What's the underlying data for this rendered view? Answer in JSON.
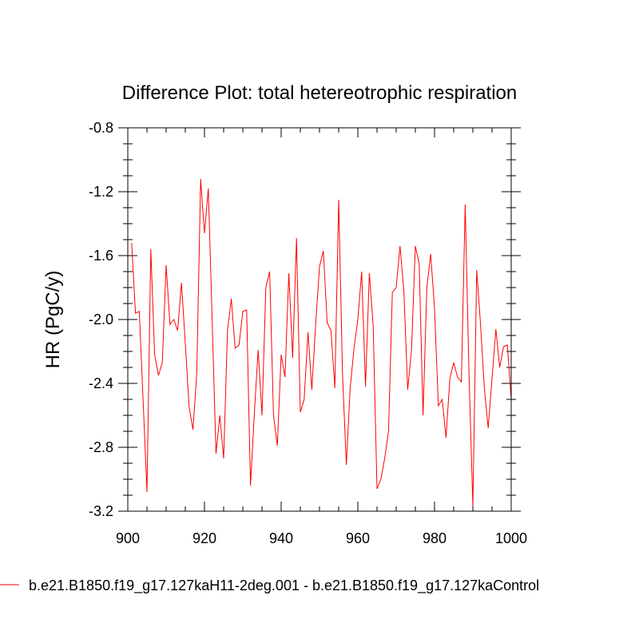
{
  "chart_data": {
    "type": "line",
    "title": "Difference Plot: total hetereotrophic respiration",
    "xlabel": "",
    "ylabel": "HR  (PgC/y)",
    "xlim": [
      900,
      1000
    ],
    "ylim": [
      -3.2,
      -0.8
    ],
    "xticks": [
      900,
      920,
      940,
      960,
      980,
      1000
    ],
    "xtick_labels": [
      "900",
      "920",
      "940",
      "960",
      "980",
      "1000"
    ],
    "yticks": [
      -3.2,
      -2.8,
      -2.4,
      -2.0,
      -1.6,
      -1.2,
      -0.8
    ],
    "ytick_labels": [
      "-3.2",
      "-2.8",
      "-2.4",
      "-2.0",
      "-1.6",
      "-1.2",
      "-0.8"
    ],
    "grid": false,
    "legend_position": "bottom",
    "series": [
      {
        "name": "b.e21.B1850.f19_g17.127kaH11-2deg.001 - b.e21.B1850.f19_g17.127kaControl",
        "color": "#ff0000",
        "x": [
          901,
          902,
          903,
          904,
          905,
          906,
          907,
          908,
          909,
          910,
          911,
          912,
          913,
          914,
          915,
          916,
          917,
          918,
          919,
          920,
          921,
          922,
          923,
          924,
          925,
          926,
          927,
          928,
          929,
          930,
          931,
          932,
          933,
          934,
          935,
          936,
          937,
          938,
          939,
          940,
          941,
          942,
          943,
          944,
          945,
          946,
          947,
          948,
          949,
          950,
          951,
          952,
          953,
          954,
          955,
          956,
          957,
          958,
          959,
          960,
          961,
          962,
          963,
          964,
          965,
          966,
          967,
          968,
          969,
          970,
          971,
          972,
          973,
          974,
          975,
          976,
          977,
          978,
          979,
          980,
          981,
          982,
          983,
          984,
          985,
          986,
          987,
          988,
          989,
          990,
          991,
          992,
          993,
          994,
          995,
          996,
          997,
          998,
          999,
          1000
        ],
        "y": [
          -1.52,
          -1.96,
          -1.95,
          -2.51,
          -3.08,
          -1.56,
          -2.22,
          -2.35,
          -2.27,
          -1.66,
          -2.03,
          -2.0,
          -2.07,
          -1.77,
          -2.15,
          -2.55,
          -2.69,
          -2.33,
          -1.12,
          -1.46,
          -1.18,
          -2.0,
          -2.84,
          -2.6,
          -2.87,
          -2.07,
          -1.87,
          -2.18,
          -2.16,
          -1.95,
          -1.94,
          -3.04,
          -2.59,
          -2.19,
          -2.6,
          -1.8,
          -1.7,
          -2.6,
          -2.79,
          -2.22,
          -2.36,
          -1.71,
          -2.24,
          -1.49,
          -2.58,
          -2.5,
          -2.08,
          -2.44,
          -2.03,
          -1.67,
          -1.57,
          -2.02,
          -2.07,
          -2.43,
          -1.25,
          -2.34,
          -2.91,
          -2.43,
          -2.18,
          -2.0,
          -1.7,
          -2.42,
          -1.71,
          -2.04,
          -3.06,
          -3.0,
          -2.87,
          -2.7,
          -1.83,
          -1.8,
          -1.54,
          -1.82,
          -2.44,
          -2.19,
          -1.54,
          -1.65,
          -2.6,
          -1.8,
          -1.59,
          -1.93,
          -2.54,
          -2.5,
          -2.74,
          -2.37,
          -2.27,
          -2.36,
          -2.39,
          -1.28,
          -2.35,
          -3.17,
          -1.69,
          -2.03,
          -2.43,
          -2.68,
          -2.37,
          -2.06,
          -2.3,
          -2.17,
          -2.16,
          -2.5
        ]
      }
    ]
  },
  "legend": {
    "label": "b.e21.B1850.f19_g17.127kaH11-2deg.001 - b.e21.B1850.f19_g17.127kaControl"
  }
}
